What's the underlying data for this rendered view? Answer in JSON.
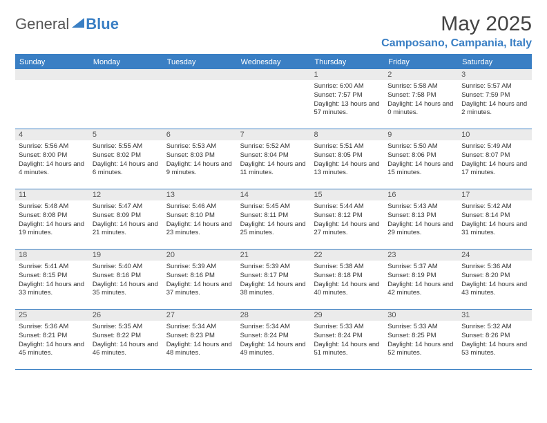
{
  "logo": {
    "text1": "General",
    "text2": "Blue"
  },
  "title": "May 2025",
  "location": "Camposano, Campania, Italy",
  "day_headers": [
    "Sunday",
    "Monday",
    "Tuesday",
    "Wednesday",
    "Thursday",
    "Friday",
    "Saturday"
  ],
  "colors": {
    "accent": "#3a7fc4",
    "header_bg": "#3a7fc4",
    "header_text": "#ffffff",
    "daynum_bg": "#ebebeb",
    "text": "#333333",
    "title_text": "#444444"
  },
  "weeks": [
    [
      {
        "n": "",
        "lines": []
      },
      {
        "n": "",
        "lines": []
      },
      {
        "n": "",
        "lines": []
      },
      {
        "n": "",
        "lines": []
      },
      {
        "n": "1",
        "lines": [
          "Sunrise: 6:00 AM",
          "Sunset: 7:57 PM",
          "Daylight: 13 hours and 57 minutes."
        ]
      },
      {
        "n": "2",
        "lines": [
          "Sunrise: 5:58 AM",
          "Sunset: 7:58 PM",
          "Daylight: 14 hours and 0 minutes."
        ]
      },
      {
        "n": "3",
        "lines": [
          "Sunrise: 5:57 AM",
          "Sunset: 7:59 PM",
          "Daylight: 14 hours and 2 minutes."
        ]
      }
    ],
    [
      {
        "n": "4",
        "lines": [
          "Sunrise: 5:56 AM",
          "Sunset: 8:00 PM",
          "Daylight: 14 hours and 4 minutes."
        ]
      },
      {
        "n": "5",
        "lines": [
          "Sunrise: 5:55 AM",
          "Sunset: 8:02 PM",
          "Daylight: 14 hours and 6 minutes."
        ]
      },
      {
        "n": "6",
        "lines": [
          "Sunrise: 5:53 AM",
          "Sunset: 8:03 PM",
          "Daylight: 14 hours and 9 minutes."
        ]
      },
      {
        "n": "7",
        "lines": [
          "Sunrise: 5:52 AM",
          "Sunset: 8:04 PM",
          "Daylight: 14 hours and 11 minutes."
        ]
      },
      {
        "n": "8",
        "lines": [
          "Sunrise: 5:51 AM",
          "Sunset: 8:05 PM",
          "Daylight: 14 hours and 13 minutes."
        ]
      },
      {
        "n": "9",
        "lines": [
          "Sunrise: 5:50 AM",
          "Sunset: 8:06 PM",
          "Daylight: 14 hours and 15 minutes."
        ]
      },
      {
        "n": "10",
        "lines": [
          "Sunrise: 5:49 AM",
          "Sunset: 8:07 PM",
          "Daylight: 14 hours and 17 minutes."
        ]
      }
    ],
    [
      {
        "n": "11",
        "lines": [
          "Sunrise: 5:48 AM",
          "Sunset: 8:08 PM",
          "Daylight: 14 hours and 19 minutes."
        ]
      },
      {
        "n": "12",
        "lines": [
          "Sunrise: 5:47 AM",
          "Sunset: 8:09 PM",
          "Daylight: 14 hours and 21 minutes."
        ]
      },
      {
        "n": "13",
        "lines": [
          "Sunrise: 5:46 AM",
          "Sunset: 8:10 PM",
          "Daylight: 14 hours and 23 minutes."
        ]
      },
      {
        "n": "14",
        "lines": [
          "Sunrise: 5:45 AM",
          "Sunset: 8:11 PM",
          "Daylight: 14 hours and 25 minutes."
        ]
      },
      {
        "n": "15",
        "lines": [
          "Sunrise: 5:44 AM",
          "Sunset: 8:12 PM",
          "Daylight: 14 hours and 27 minutes."
        ]
      },
      {
        "n": "16",
        "lines": [
          "Sunrise: 5:43 AM",
          "Sunset: 8:13 PM",
          "Daylight: 14 hours and 29 minutes."
        ]
      },
      {
        "n": "17",
        "lines": [
          "Sunrise: 5:42 AM",
          "Sunset: 8:14 PM",
          "Daylight: 14 hours and 31 minutes."
        ]
      }
    ],
    [
      {
        "n": "18",
        "lines": [
          "Sunrise: 5:41 AM",
          "Sunset: 8:15 PM",
          "Daylight: 14 hours and 33 minutes."
        ]
      },
      {
        "n": "19",
        "lines": [
          "Sunrise: 5:40 AM",
          "Sunset: 8:16 PM",
          "Daylight: 14 hours and 35 minutes."
        ]
      },
      {
        "n": "20",
        "lines": [
          "Sunrise: 5:39 AM",
          "Sunset: 8:16 PM",
          "Daylight: 14 hours and 37 minutes."
        ]
      },
      {
        "n": "21",
        "lines": [
          "Sunrise: 5:39 AM",
          "Sunset: 8:17 PM",
          "Daylight: 14 hours and 38 minutes."
        ]
      },
      {
        "n": "22",
        "lines": [
          "Sunrise: 5:38 AM",
          "Sunset: 8:18 PM",
          "Daylight: 14 hours and 40 minutes."
        ]
      },
      {
        "n": "23",
        "lines": [
          "Sunrise: 5:37 AM",
          "Sunset: 8:19 PM",
          "Daylight: 14 hours and 42 minutes."
        ]
      },
      {
        "n": "24",
        "lines": [
          "Sunrise: 5:36 AM",
          "Sunset: 8:20 PM",
          "Daylight: 14 hours and 43 minutes."
        ]
      }
    ],
    [
      {
        "n": "25",
        "lines": [
          "Sunrise: 5:36 AM",
          "Sunset: 8:21 PM",
          "Daylight: 14 hours and 45 minutes."
        ]
      },
      {
        "n": "26",
        "lines": [
          "Sunrise: 5:35 AM",
          "Sunset: 8:22 PM",
          "Daylight: 14 hours and 46 minutes."
        ]
      },
      {
        "n": "27",
        "lines": [
          "Sunrise: 5:34 AM",
          "Sunset: 8:23 PM",
          "Daylight: 14 hours and 48 minutes."
        ]
      },
      {
        "n": "28",
        "lines": [
          "Sunrise: 5:34 AM",
          "Sunset: 8:24 PM",
          "Daylight: 14 hours and 49 minutes."
        ]
      },
      {
        "n": "29",
        "lines": [
          "Sunrise: 5:33 AM",
          "Sunset: 8:24 PM",
          "Daylight: 14 hours and 51 minutes."
        ]
      },
      {
        "n": "30",
        "lines": [
          "Sunrise: 5:33 AM",
          "Sunset: 8:25 PM",
          "Daylight: 14 hours and 52 minutes."
        ]
      },
      {
        "n": "31",
        "lines": [
          "Sunrise: 5:32 AM",
          "Sunset: 8:26 PM",
          "Daylight: 14 hours and 53 minutes."
        ]
      }
    ]
  ]
}
